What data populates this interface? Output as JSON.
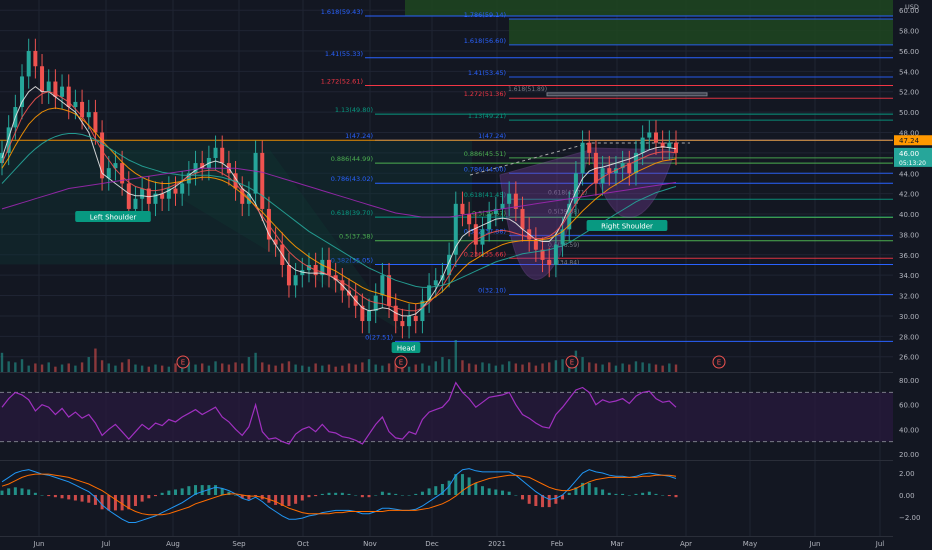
{
  "chart_data": {
    "type": "candlestick",
    "currency": "USD",
    "colors": {
      "background": "#131722",
      "grid": "#1f2433",
      "up": "#26a69a",
      "down": "#ef5350",
      "fib_line": "#2962ff",
      "fib_red": "#f23645",
      "fib_green": "#4caf50",
      "fib_teal": "#089981",
      "ma_white": "#e6e6e6",
      "ma_red": "#ef5350",
      "ma_orange": "#ff9800",
      "ma_teal": "#26a69a",
      "ma_purple": "#9c27b0",
      "rsi_line": "#a030c0",
      "rsi_band": "#7e57c2",
      "macd_line": "#2196f3",
      "signal_line": "#ff6d00",
      "hist_up": "#26a69a",
      "hist_down": "#ef5350",
      "last_price_bg": "#ff9800",
      "current_price_bg": "#26a69a"
    },
    "months": [
      "Jun",
      "Jul",
      "Aug",
      "Sep",
      "Oct",
      "Nov",
      "Dec",
      "2021",
      "Feb",
      "Mar",
      "Apr",
      "May",
      "Jun",
      "Jul"
    ],
    "price_axis": {
      "min": 24.5,
      "max": 61,
      "ticks": [
        60.0,
        58.0,
        56.0,
        54.0,
        52.0,
        50.0,
        48.0,
        46.0,
        44.0,
        42.0,
        40.0,
        38.0,
        36.0,
        34.0,
        32.0,
        30.0,
        28.0,
        26.0
      ]
    },
    "tick_labels": [
      "60.00",
      "58.00",
      "56.00",
      "54.00",
      "52.00",
      "50.00",
      "48.00",
      "46.00",
      "44.00",
      "42.00",
      "40.00",
      "38.00",
      "36.00",
      "34.00",
      "32.00",
      "30.00",
      "28.00",
      "26.00"
    ],
    "last_price_label": "47.24",
    "current_price": {
      "value": 46.0,
      "label": "46.00",
      "countdown": "05:13:20"
    },
    "closes": [
      46.0,
      48.5,
      50.5,
      53.5,
      56.0,
      54.5,
      52.0,
      53.0,
      51.5,
      52.5,
      50.5,
      51.0,
      49.5,
      50.0,
      48.0,
      43.5,
      44.5,
      45.0,
      43.0,
      40.5,
      41.5,
      42.5,
      41.0,
      42.0,
      41.5,
      42.5,
      42.0,
      43.0,
      44.0,
      45.0,
      44.5,
      45.5,
      46.5,
      45.0,
      44.0,
      42.5,
      41.0,
      42.0,
      46.0,
      40.5,
      37.5,
      37.0,
      35.0,
      33.0,
      34.0,
      34.5,
      35.0,
      34.0,
      35.5,
      34.0,
      33.5,
      32.5,
      32.0,
      31.0,
      29.5,
      30.5,
      32.0,
      34.0,
      31.0,
      29.5,
      29.0,
      30.0,
      29.5,
      31.5,
      33.0,
      33.5,
      34.0,
      36.0,
      41.0,
      40.0,
      39.0,
      37.0,
      38.5,
      40.0,
      40.5,
      41.0,
      42.0,
      40.5,
      38.5,
      37.5,
      36.5,
      35.5,
      35.0,
      37.0,
      38.5,
      41.0,
      44.0,
      47.0,
      46.0,
      43.0,
      44.5,
      44.0,
      44.5,
      45.0,
      44.0,
      46.0,
      47.5,
      48.0,
      47.0,
      46.5,
      47.0,
      46.0
    ],
    "moving_averages": [
      {
        "color": "ma_white",
        "values": [
          45.5,
          47.5,
          49.5,
          51.0,
          52.0,
          52.5,
          52.0,
          52.0,
          51.5,
          51.0,
          50.5,
          50.0,
          49.0,
          48.0,
          46.0,
          44.0,
          43.5,
          43.0,
          42.5,
          42.0,
          41.8,
          41.8,
          41.7,
          41.8,
          42.0,
          42.3,
          42.7,
          43.2,
          43.8,
          44.3,
          44.6,
          45.0,
          45.2,
          45.0,
          44.5,
          43.5,
          42.5,
          42.0,
          41.0,
          39.5,
          38.0,
          37.0,
          36.0,
          35.0,
          34.5,
          34.3,
          34.2,
          34.2,
          34.2,
          34.0,
          33.6,
          33.0,
          32.3,
          31.5,
          30.8,
          30.5,
          30.6,
          30.8,
          30.7,
          30.3,
          30.0,
          30.0,
          30.2,
          30.8,
          31.6,
          32.6,
          33.8,
          35.3,
          36.8,
          37.8,
          38.3,
          38.6,
          38.9,
          39.2,
          39.5,
          39.6,
          39.5,
          39.1,
          38.5,
          38.0,
          37.5,
          37.3,
          37.3,
          38.0,
          39.2,
          40.7,
          42.2,
          43.5,
          44.2,
          44.5,
          44.6,
          44.8,
          45.0,
          45.2,
          45.4,
          45.7,
          46.0,
          46.3,
          46.5,
          46.6,
          46.5,
          46.4
        ]
      },
      {
        "color": "ma_red",
        "values": [
          45.0,
          46.5,
          48.0,
          49.5,
          50.5,
          51.3,
          51.8,
          52.0,
          51.8,
          51.4,
          51.0,
          50.3,
          49.6,
          48.6,
          47.4,
          46.2,
          45.3,
          44.4,
          43.7,
          43.1,
          42.7,
          42.5,
          42.3,
          42.3,
          42.4,
          42.6,
          42.9,
          43.3,
          43.7,
          44.0,
          44.2,
          44.3,
          44.3,
          44.0,
          43.6,
          43.0,
          42.2,
          41.5,
          40.7,
          39.8,
          38.9,
          38.0,
          37.1,
          36.3,
          35.7,
          35.2,
          34.8,
          34.5,
          34.3,
          34.0,
          33.7,
          33.3,
          32.9,
          32.4,
          31.9,
          31.5,
          31.3,
          31.2,
          31.0,
          30.8,
          30.6,
          30.5,
          30.5,
          30.8,
          31.3,
          32.0,
          32.9,
          34.0,
          35.2,
          36.2,
          37.0,
          37.5,
          37.8,
          38.1,
          38.3,
          38.4,
          38.3,
          38.1,
          37.9,
          37.7,
          37.6,
          37.6,
          37.8,
          38.3,
          39.0,
          40.0,
          41.0,
          42.0,
          42.7,
          43.2,
          43.6,
          44.0,
          44.3,
          44.6,
          44.9,
          45.2,
          45.5,
          45.8,
          46.0,
          46.1,
          46.1,
          46.0
        ]
      },
      {
        "color": "ma_orange",
        "values": [
          44.5,
          45.5,
          46.7,
          47.8,
          48.8,
          49.5,
          50.0,
          50.3,
          50.4,
          50.3,
          50.1,
          49.8,
          49.3,
          48.7,
          48.0,
          47.2,
          46.5,
          45.8,
          45.1,
          44.5,
          44.0,
          43.6,
          43.3,
          43.1,
          43.0,
          43.0,
          43.1,
          43.2,
          43.4,
          43.5,
          43.6,
          43.6,
          43.5,
          43.3,
          43.0,
          42.5,
          42.0,
          41.4,
          40.8,
          40.2,
          39.5,
          38.8,
          38.1,
          37.4,
          36.8,
          36.3,
          35.8,
          35.4,
          35.0,
          34.7,
          34.4,
          34.0,
          33.6,
          33.2,
          32.8,
          32.5,
          32.3,
          32.1,
          31.9,
          31.7,
          31.5,
          31.3,
          31.2,
          31.3,
          31.5,
          31.9,
          32.4,
          33.1,
          33.9,
          34.6,
          35.2,
          35.6,
          36.0,
          36.4,
          36.7,
          37.0,
          37.2,
          37.3,
          37.4,
          37.4,
          37.4,
          37.5,
          37.6,
          37.9,
          38.3,
          38.9,
          39.6,
          40.3,
          40.9,
          41.5,
          42.0,
          42.5,
          42.9,
          43.3,
          43.7,
          44.1,
          44.4,
          44.7,
          45.0,
          45.2,
          45.3,
          45.4
        ]
      },
      {
        "color": "ma_teal",
        "values": [
          43.0,
          43.7,
          44.4,
          45.1,
          45.8,
          46.4,
          46.9,
          47.3,
          47.6,
          47.8,
          47.9,
          47.9,
          47.8,
          47.6,
          47.3,
          46.9,
          46.5,
          46.1,
          45.7,
          45.3,
          45.0,
          44.7,
          44.5,
          44.3,
          44.1,
          44.0,
          43.9,
          43.8,
          43.8,
          43.8,
          43.8,
          43.8,
          43.7,
          43.6,
          43.4,
          43.2,
          42.9,
          42.6,
          42.2,
          41.8,
          41.3,
          40.8,
          40.3,
          39.8,
          39.3,
          38.8,
          38.3,
          37.9,
          37.5,
          37.1,
          36.7,
          36.3,
          35.9,
          35.5,
          35.1,
          34.7,
          34.4,
          34.1,
          33.8,
          33.5,
          33.3,
          33.1,
          32.9,
          32.8,
          32.8,
          32.9,
          33.0,
          33.2,
          33.5,
          33.8,
          34.1,
          34.4,
          34.7,
          35.0,
          35.3,
          35.5,
          35.7,
          35.9,
          36.1,
          36.2,
          36.3,
          36.4,
          36.5,
          36.7,
          36.9,
          37.2,
          37.6,
          38.0,
          38.4,
          38.8,
          39.2,
          39.6,
          40.0,
          40.4,
          40.8,
          41.2,
          41.5,
          41.8,
          42.1,
          42.3,
          42.5,
          42.7
        ]
      },
      {
        "color": "ma_purple",
        "values": [
          40.5,
          40.7,
          40.9,
          41.1,
          41.3,
          41.5,
          41.7,
          41.9,
          42.1,
          42.3,
          42.5,
          42.6,
          42.7,
          42.8,
          42.9,
          43.0,
          43.1,
          43.2,
          43.3,
          43.4,
          43.5,
          43.6,
          43.7,
          43.8,
          43.9,
          44.0,
          44.1,
          44.2,
          44.3,
          44.4,
          44.5,
          44.5,
          44.5,
          44.5,
          44.5,
          44.5,
          44.4,
          44.3,
          44.2,
          44.1,
          43.9,
          43.7,
          43.5,
          43.3,
          43.1,
          42.9,
          42.7,
          42.5,
          42.3,
          42.1,
          41.9,
          41.7,
          41.5,
          41.3,
          41.1,
          40.9,
          40.7,
          40.5,
          40.3,
          40.1,
          40.0,
          39.9,
          39.8,
          39.7,
          39.7,
          39.7,
          39.7,
          39.7,
          39.8,
          39.9,
          40.0,
          40.1,
          40.2,
          40.3,
          40.4,
          40.5,
          40.6,
          40.7,
          40.8,
          40.9,
          41.0,
          41.1,
          41.2,
          41.3,
          41.4,
          41.5,
          41.6,
          41.7,
          41.8,
          41.9,
          42.0,
          42.1,
          42.2,
          42.3,
          42.4,
          42.5,
          42.6,
          42.7,
          42.8,
          42.9,
          43.0,
          43.1
        ]
      }
    ],
    "fib_left": [
      {
        "label": "1.618(59.43)",
        "value": 59.43,
        "color": "fib_line"
      },
      {
        "label": "1.41(55.33)",
        "value": 55.33,
        "color": "fib_line"
      },
      {
        "label": "1.272(52.61)",
        "value": 52.61,
        "color": "fib_red"
      },
      {
        "label": "1.13(49.80)",
        "value": 49.8,
        "color": "fib_teal"
      },
      {
        "label": "1(47.24)",
        "value": 47.24,
        "color": "fib_line"
      },
      {
        "label": "0.886(44.99)",
        "value": 44.99,
        "color": "fib_green"
      },
      {
        "label": "0.786(43.02)",
        "value": 43.02,
        "color": "fib_line"
      },
      {
        "label": "0.618(39.70)",
        "value": 39.7,
        "color": "fib_teal"
      },
      {
        "label": "0.5(37.38)",
        "value": 37.38,
        "color": "fib_green"
      },
      {
        "label": "0.382(35.05)",
        "value": 35.05,
        "color": "fib_line"
      },
      {
        "label": "0(27.51)",
        "value": 27.51,
        "color": "fib_line"
      }
    ],
    "fib_right": [
      {
        "label": "1.786(59.14)",
        "value": 59.14,
        "color": "fib_line"
      },
      {
        "label": "1.618(56.60)",
        "value": 56.6,
        "color": "fib_line"
      },
      {
        "label": "1.41(53.45)",
        "value": 53.45,
        "color": "fib_line"
      },
      {
        "label": "1.272(51.36)",
        "value": 51.36,
        "color": "fib_red"
      },
      {
        "label": "1.13(49.21)",
        "value": 49.21,
        "color": "fib_teal"
      },
      {
        "label": "1(47.24)",
        "value": 47.24,
        "color": "fib_line"
      },
      {
        "label": "0.886(45.51)",
        "value": 45.51,
        "color": "fib_green"
      },
      {
        "label": "0.786(44.00)",
        "value": 44.0,
        "color": "fib_line"
      },
      {
        "label": "0.618(41.45)",
        "value": 41.45,
        "color": "fib_teal"
      },
      {
        "label": "0.5(39.67)",
        "value": 39.67,
        "color": "fib_green"
      },
      {
        "label": "0.382(37.88)",
        "value": 37.88,
        "color": "fib_line"
      },
      {
        "label": "0.236(35.66)",
        "value": 35.66,
        "color": "fib_red"
      },
      {
        "label": "0(32.10)",
        "value": 32.1,
        "color": "fib_line"
      }
    ],
    "fib_extra": [
      {
        "label": "1.618(51.89)",
        "value": 51.89
      },
      {
        "label": "0.618(41.71)",
        "value": 41.71
      },
      {
        "label": "0.5(39.88)",
        "value": 39.88
      },
      {
        "label": "0.5(36.59)",
        "value": 36.59
      },
      {
        "label": "0.5(34.84)",
        "value": 34.84
      }
    ],
    "pattern_labels": [
      "Left Shoulder",
      "Head",
      "Right Shoulder"
    ],
    "earnings_marker": "E",
    "volume": [
      18,
      10,
      9,
      12,
      6,
      8,
      7,
      9,
      5,
      7,
      8,
      6,
      9,
      14,
      22,
      11,
      8,
      6,
      9,
      12,
      7,
      6,
      5,
      7,
      6,
      5,
      8,
      6,
      9,
      7,
      8,
      6,
      10,
      8,
      7,
      9,
      8,
      14,
      18,
      9,
      7,
      6,
      8,
      10,
      7,
      6,
      5,
      8,
      6,
      7,
      5,
      6,
      8,
      7,
      9,
      12,
      7,
      6,
      8,
      9,
      6,
      5,
      7,
      8,
      6,
      10,
      14,
      12,
      30,
      11,
      8,
      7,
      9,
      8,
      6,
      7,
      10,
      8,
      7,
      9,
      6,
      8,
      9,
      11,
      12,
      10,
      20,
      14,
      9,
      8,
      7,
      9,
      6,
      8,
      7,
      10,
      9,
      8,
      7,
      6,
      8,
      7
    ],
    "rsi": {
      "axis_ticks": [
        80,
        60,
        40,
        20
      ],
      "tick_labels": [
        "80.00",
        "60.00",
        "40.00",
        "20.00"
      ],
      "upper": 70,
      "lower": 30,
      "min": 15,
      "max": 85,
      "values": [
        58,
        65,
        70,
        68,
        64,
        55,
        60,
        58,
        52,
        57,
        50,
        54,
        49,
        52,
        45,
        35,
        40,
        44,
        38,
        32,
        38,
        44,
        40,
        45,
        43,
        48,
        46,
        50,
        53,
        56,
        52,
        55,
        58,
        50,
        46,
        40,
        35,
        42,
        60,
        38,
        32,
        33,
        30,
        28,
        36,
        40,
        42,
        38,
        44,
        38,
        37,
        34,
        33,
        31,
        28,
        36,
        44,
        50,
        38,
        33,
        32,
        38,
        36,
        48,
        54,
        56,
        58,
        64,
        78,
        70,
        65,
        58,
        62,
        66,
        67,
        68,
        70,
        60,
        52,
        49,
        45,
        42,
        41,
        52,
        58,
        65,
        72,
        74,
        70,
        60,
        64,
        62,
        63,
        65,
        61,
        67,
        70,
        71,
        65,
        62,
        63,
        58
      ]
    },
    "macd": {
      "axis_ticks": [
        2.0,
        0.0,
        -2.0
      ],
      "tick_labels": [
        "2.00",
        "0.00",
        "−2.00"
      ],
      "min": -3.0,
      "max": 3.0,
      "macd_values": [
        1.2,
        1.6,
        2.0,
        2.2,
        2.3,
        2.1,
        1.9,
        1.8,
        1.6,
        1.4,
        1.2,
        0.9,
        0.6,
        0.3,
        -0.2,
        -0.9,
        -1.4,
        -1.8,
        -2.2,
        -2.5,
        -2.5,
        -2.3,
        -2.1,
        -1.9,
        -1.6,
        -1.3,
        -1.0,
        -0.7,
        -0.3,
        0.1,
        0.3,
        0.5,
        0.7,
        0.6,
        0.4,
        0.1,
        -0.3,
        -0.5,
        -0.2,
        -0.6,
        -1.1,
        -1.5,
        -1.9,
        -2.2,
        -2.2,
        -2.1,
        -1.9,
        -1.8,
        -1.6,
        -1.5,
        -1.4,
        -1.4,
        -1.4,
        -1.5,
        -1.7,
        -1.7,
        -1.5,
        -1.2,
        -1.2,
        -1.3,
        -1.4,
        -1.4,
        -1.3,
        -1.0,
        -0.6,
        -0.2,
        0.2,
        0.8,
        1.8,
        2.3,
        2.4,
        2.2,
        2.1,
        2.1,
        2.1,
        2.1,
        2.1,
        1.8,
        1.3,
        0.8,
        0.3,
        -0.1,
        -0.4,
        -0.3,
        0.0,
        0.6,
        1.3,
        2.0,
        2.3,
        2.1,
        2.0,
        1.8,
        1.7,
        1.7,
        1.6,
        1.7,
        1.9,
        2.0,
        1.9,
        1.8,
        1.7,
        1.5
      ],
      "signal_values": [
        0.8,
        1.0,
        1.3,
        1.6,
        1.8,
        1.9,
        1.9,
        1.9,
        1.8,
        1.7,
        1.6,
        1.4,
        1.2,
        1.0,
        0.7,
        0.4,
        0.0,
        -0.4,
        -0.8,
        -1.2,
        -1.5,
        -1.7,
        -1.8,
        -1.8,
        -1.8,
        -1.7,
        -1.5,
        -1.3,
        -1.1,
        -0.8,
        -0.6,
        -0.4,
        -0.2,
        0.0,
        0.1,
        0.1,
        0.0,
        -0.1,
        -0.1,
        -0.2,
        -0.4,
        -0.6,
        -0.9,
        -1.2,
        -1.4,
        -1.6,
        -1.7,
        -1.7,
        -1.7,
        -1.7,
        -1.6,
        -1.6,
        -1.5,
        -1.5,
        -1.5,
        -1.5,
        -1.5,
        -1.5,
        -1.4,
        -1.4,
        -1.4,
        -1.4,
        -1.4,
        -1.3,
        -1.2,
        -1.0,
        -0.8,
        -0.5,
        -0.1,
        0.4,
        0.8,
        1.1,
        1.3,
        1.5,
        1.6,
        1.7,
        1.8,
        1.8,
        1.7,
        1.6,
        1.3,
        1.0,
        0.7,
        0.5,
        0.4,
        0.4,
        0.6,
        0.9,
        1.2,
        1.4,
        1.5,
        1.6,
        1.6,
        1.6,
        1.6,
        1.6,
        1.7,
        1.7,
        1.8,
        1.8,
        1.8,
        1.7
      ]
    }
  }
}
